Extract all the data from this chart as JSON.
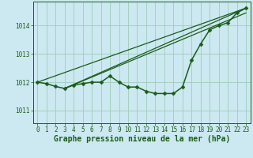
{
  "title": "Graphe pression niveau de la mer (hPa)",
  "bg_color": "#cce8f0",
  "plot_bg_color": "#cce8f0",
  "line_color": "#1a5c1a",
  "grid_color": "#a0ccbb",
  "x_ticks": [
    0,
    1,
    2,
    3,
    4,
    5,
    6,
    7,
    8,
    9,
    10,
    11,
    12,
    13,
    14,
    15,
    16,
    17,
    18,
    19,
    20,
    21,
    22,
    23
  ],
  "y_ticks": [
    1011,
    1012,
    1013,
    1014
  ],
  "ylim": [
    1010.55,
    1014.85
  ],
  "xlim": [
    -0.5,
    23.5
  ],
  "main_series": {
    "x": [
      0,
      1,
      2,
      3,
      4,
      5,
      6,
      7,
      8,
      9,
      10,
      11,
      12,
      13,
      14,
      15,
      16,
      17,
      18,
      19,
      20,
      21,
      22,
      23
    ],
    "y": [
      1012.0,
      1011.95,
      1011.85,
      1011.78,
      1011.9,
      1011.95,
      1012.0,
      1012.0,
      1012.22,
      1012.0,
      1011.83,
      1011.83,
      1011.68,
      1011.6,
      1011.6,
      1011.6,
      1011.83,
      1012.78,
      1013.35,
      1013.85,
      1014.0,
      1014.1,
      1014.45,
      1014.62
    ],
    "marker": "D",
    "markersize": 2.5,
    "linewidth": 1.1
  },
  "ref_lines": [
    {
      "x": [
        0,
        23
      ],
      "y": [
        1012.0,
        1014.62
      ]
    },
    {
      "x": [
        3,
        23
      ],
      "y": [
        1011.78,
        1014.62
      ]
    },
    {
      "x": [
        3,
        23
      ],
      "y": [
        1011.78,
        1014.45
      ]
    }
  ],
  "tick_fontsize": 5.5,
  "label_fontsize": 7.0,
  "tick_color": "#1a5c1a",
  "label_color": "#1a5c1a"
}
